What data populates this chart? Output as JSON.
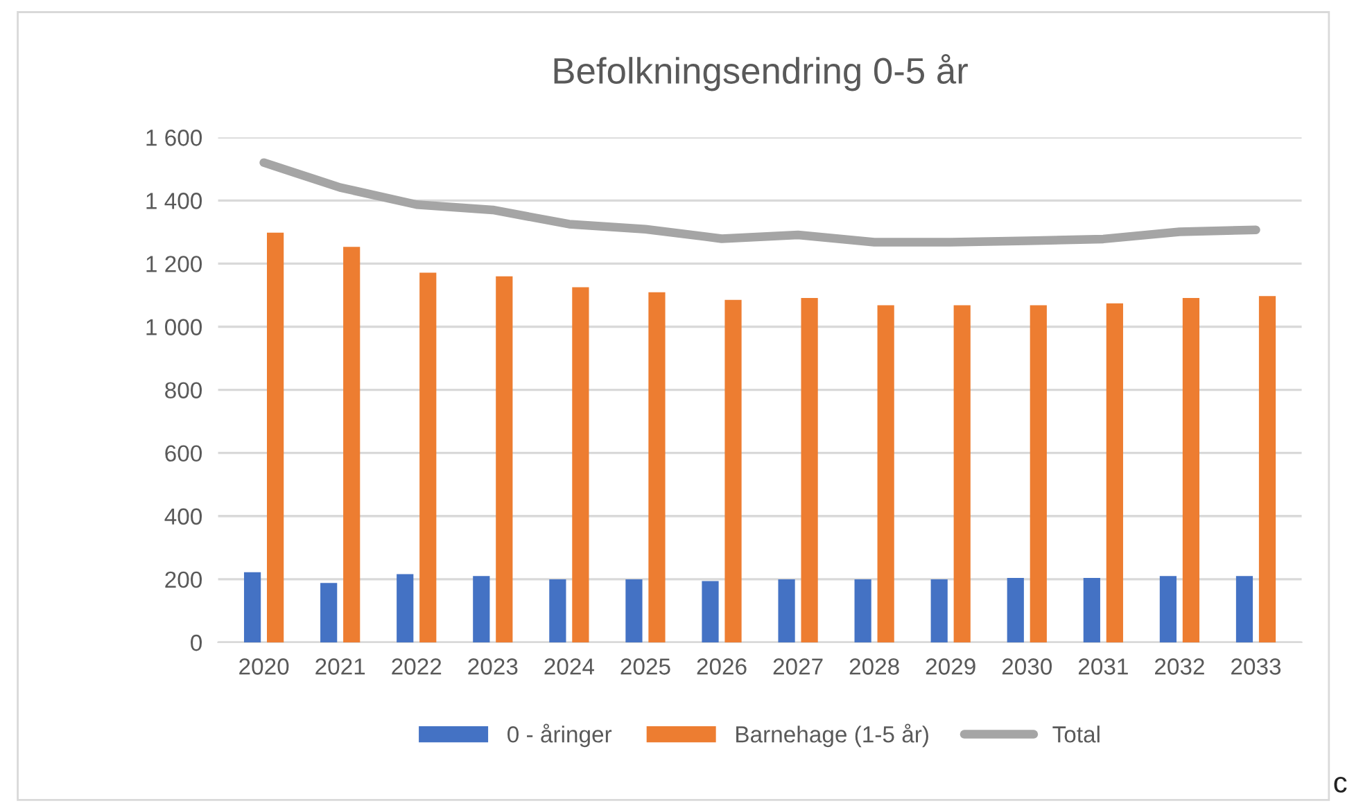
{
  "chart_data": {
    "type": "bar",
    "title": "Befolkningsendring 0-5 år",
    "categories": [
      "2020",
      "2021",
      "2022",
      "2023",
      "2024",
      "2025",
      "2026",
      "2027",
      "2028",
      "2029",
      "2030",
      "2031",
      "2032",
      "2033"
    ],
    "series": [
      {
        "name": "0 - åringer",
        "color": "#4472c4",
        "values": [
          222,
          188,
          216,
          210,
          200,
          200,
          194,
          200,
          200,
          200,
          204,
          204,
          210,
          210
        ]
      },
      {
        "name": "Barnehage (1-5 år)",
        "color": "#ed7d31",
        "values": [
          1298,
          1253,
          1171,
          1160,
          1125,
          1109,
          1085,
          1091,
          1068,
          1068,
          1068,
          1074,
          1091,
          1097
        ]
      },
      {
        "name": "Total",
        "type": "line",
        "color": "#a5a5a5",
        "values": [
          1520,
          1441,
          1387,
          1370,
          1325,
          1309,
          1279,
          1291,
          1268,
          1268,
          1272,
          1278,
          1301,
          1307
        ]
      }
    ],
    "ylim": [
      0,
      1600
    ],
    "yticks": [
      0,
      200,
      400,
      600,
      800,
      {
        "value": 1000,
        "label": "1 000"
      },
      {
        "value": 1200,
        "label": "1 200"
      },
      {
        "value": 1400,
        "label": "1 400"
      },
      {
        "value": 1600,
        "label": "1 600"
      }
    ],
    "grid": "y",
    "legend": "bottom",
    "annotations": [
      "c"
    ]
  }
}
